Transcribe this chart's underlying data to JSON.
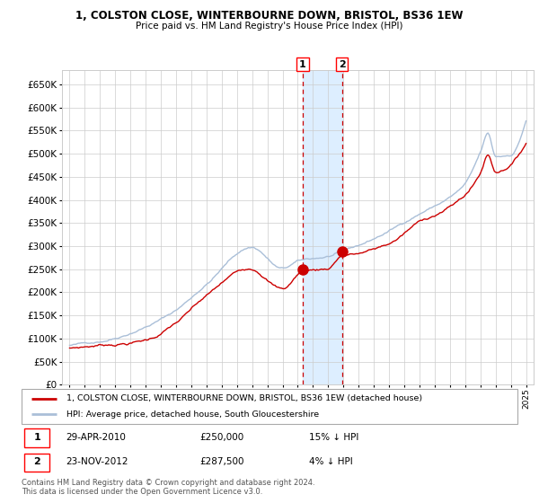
{
  "title_line1": "1, COLSTON CLOSE, WINTERBOURNE DOWN, BRISTOL, BS36 1EW",
  "title_line2": "Price paid vs. HM Land Registry's House Price Index (HPI)",
  "legend_label_red": "1, COLSTON CLOSE, WINTERBOURNE DOWN, BRISTOL, BS36 1EW (detached house)",
  "legend_label_blue": "HPI: Average price, detached house, South Gloucestershire",
  "transaction1_label": "1",
  "transaction1_date": "29-APR-2010",
  "transaction1_price": "£250,000",
  "transaction1_hpi": "15% ↓ HPI",
  "transaction1_year": 2010.32,
  "transaction1_value": 250000,
  "transaction2_label": "2",
  "transaction2_date": "23-NOV-2012",
  "transaction2_price": "£287,500",
  "transaction2_hpi": "4% ↓ HPI",
  "transaction2_year": 2012.9,
  "transaction2_value": 287500,
  "footnote_line1": "Contains HM Land Registry data © Crown copyright and database right 2024.",
  "footnote_line2": "This data is licensed under the Open Government Licence v3.0.",
  "ylim": [
    0,
    680000
  ],
  "yticks": [
    0,
    50000,
    100000,
    150000,
    200000,
    250000,
    300000,
    350000,
    400000,
    450000,
    500000,
    550000,
    600000,
    650000
  ],
  "xlim_start": 1994.5,
  "xlim_end": 2025.5,
  "background_color": "#ffffff",
  "grid_color": "#cccccc",
  "red_color": "#cc0000",
  "blue_color": "#aabfd8",
  "highlight_fill": "#ddeeff",
  "dashed_line_color": "#cc0000",
  "title_fontsize1": 8.5,
  "title_fontsize2": 7.5
}
